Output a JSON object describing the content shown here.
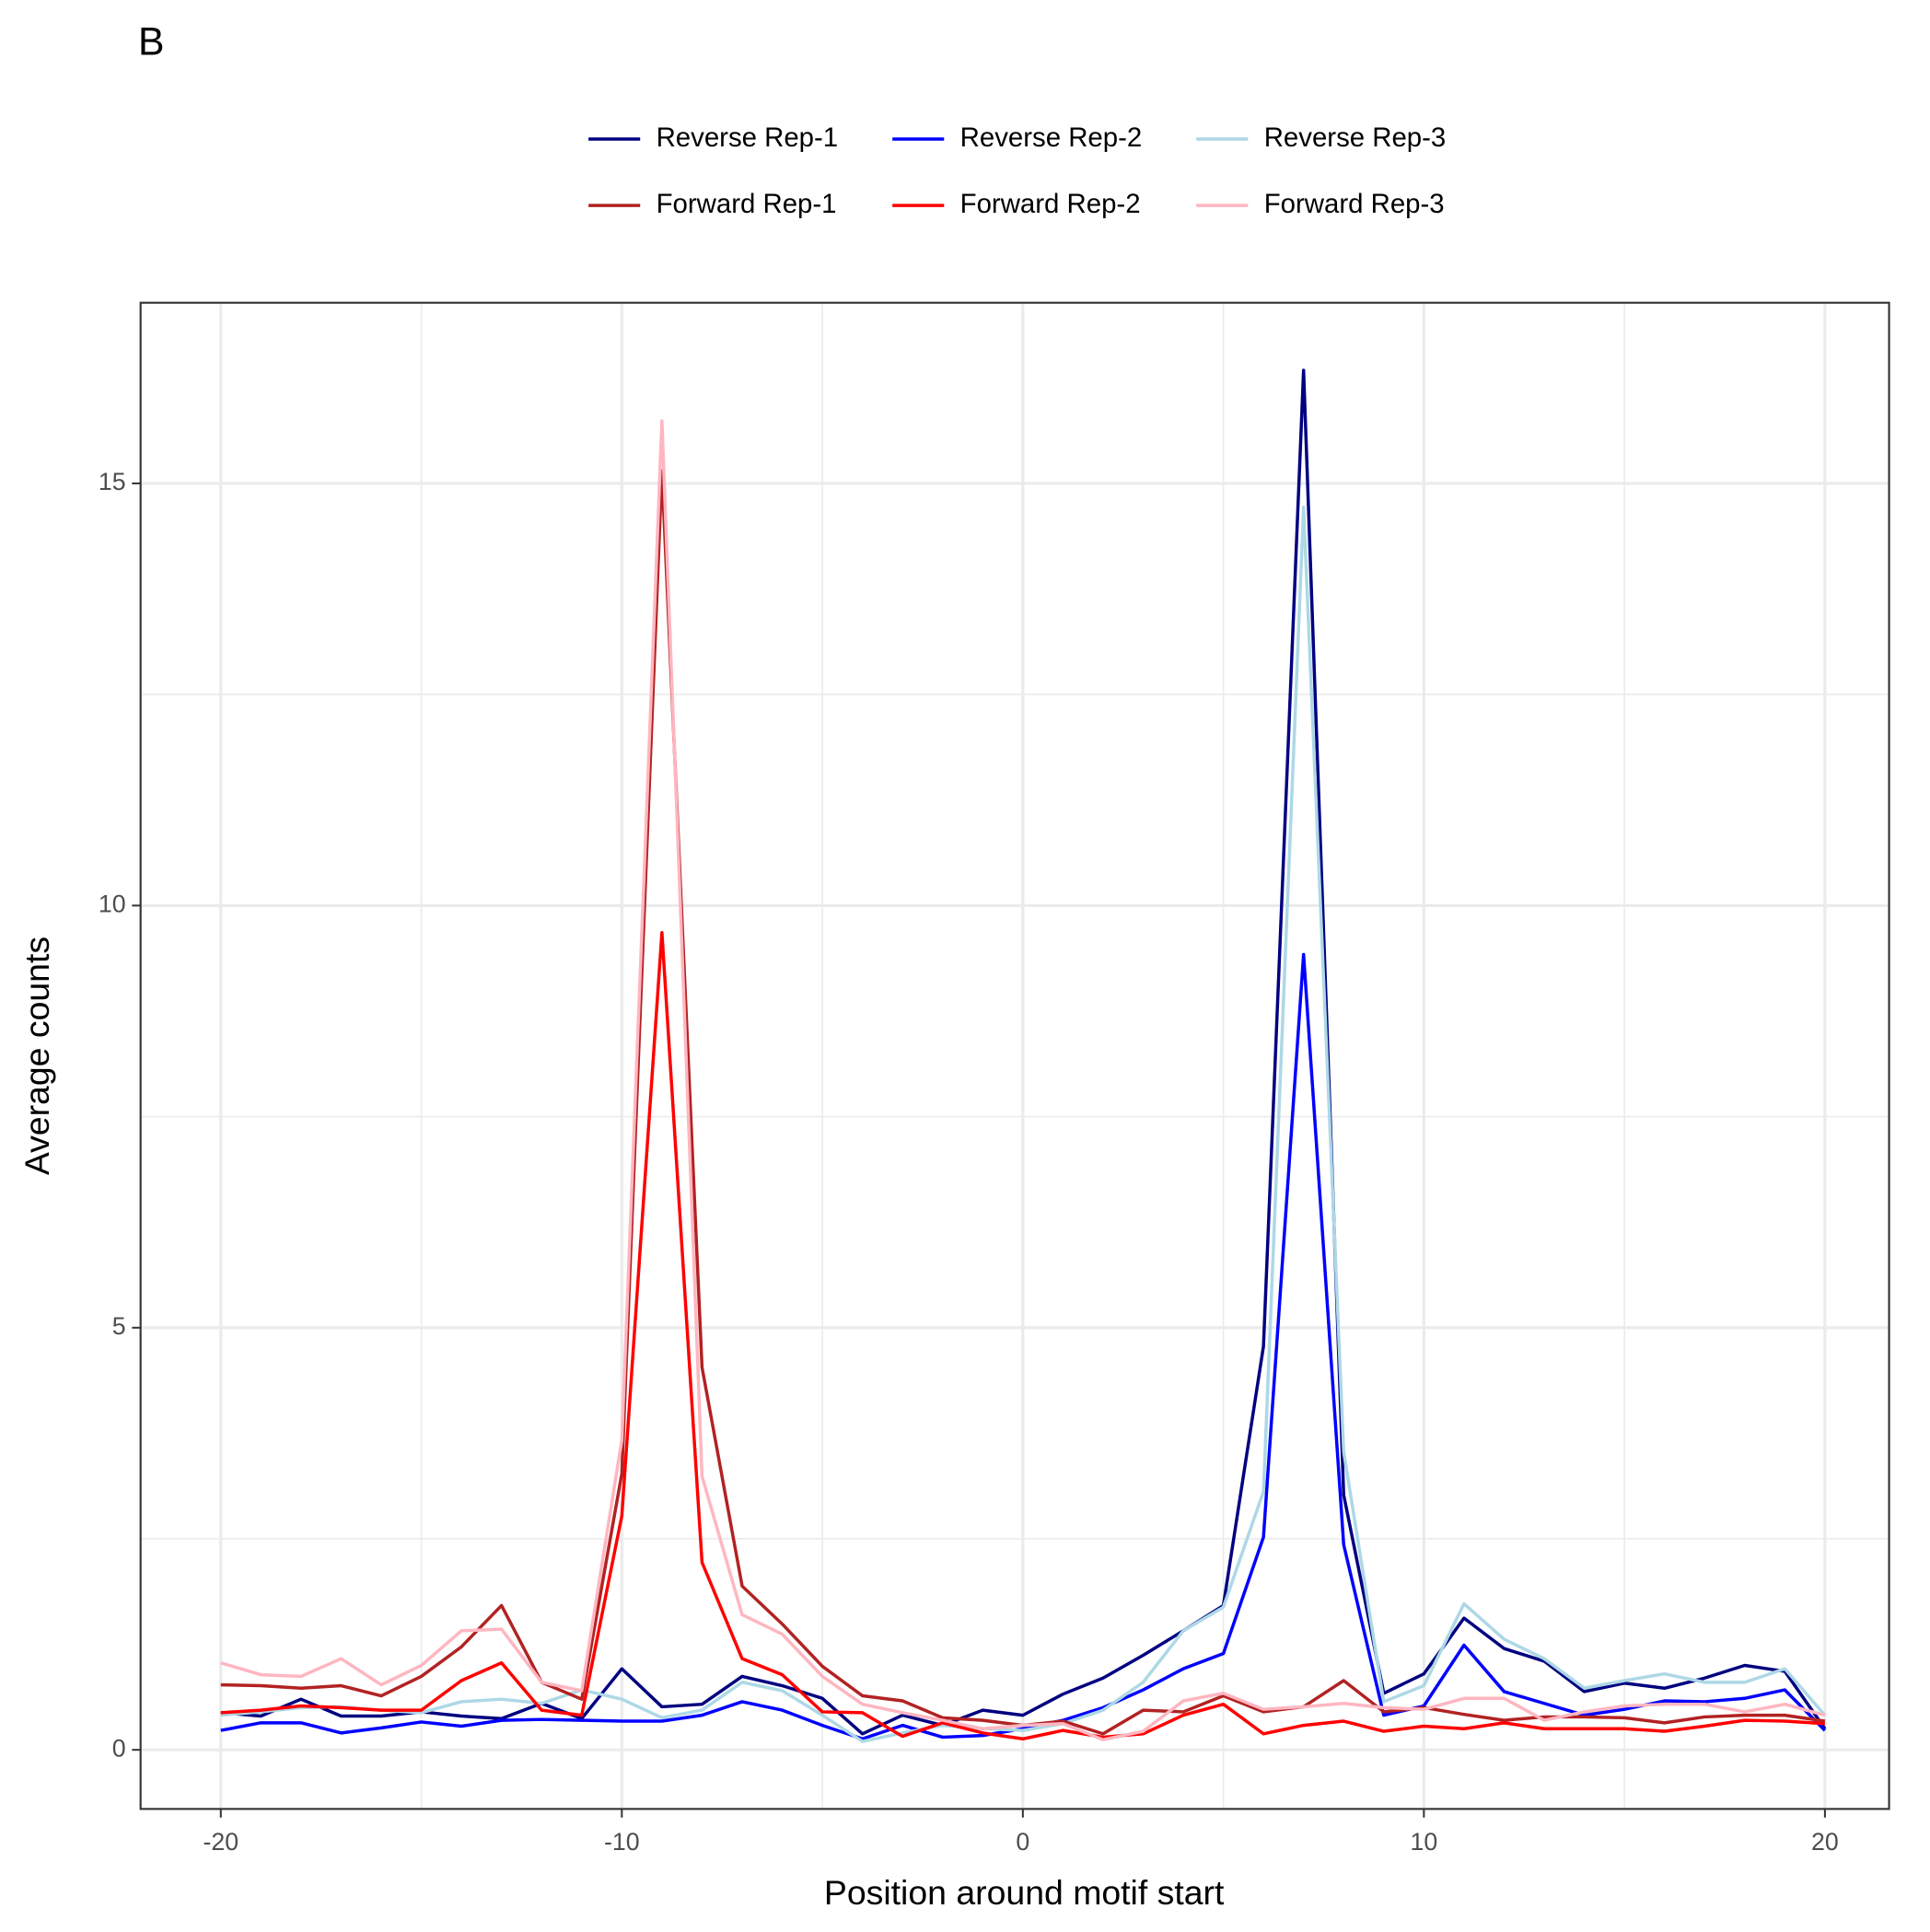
{
  "chart_data": {
    "type": "line",
    "panel_label": "B",
    "x_label": "Position around motif start",
    "y_label": "Average counts",
    "x": [
      -20,
      -19,
      -18,
      -17,
      -16,
      -15,
      -14,
      -13,
      -12,
      -11,
      -10,
      -9,
      -8,
      -7,
      -6,
      -5,
      -4,
      -3,
      -2,
      -1,
      0,
      1,
      2,
      3,
      4,
      5,
      6,
      7,
      8,
      9,
      10,
      11,
      12,
      13,
      14,
      15,
      16,
      17,
      18,
      19,
      20
    ],
    "series": [
      {
        "name": "Reverse Rep-1",
        "color": "#000080",
        "values": [
          0.44,
          0.4,
          0.6,
          0.4,
          0.4,
          0.45,
          0.4,
          0.37,
          0.55,
          0.37,
          0.96,
          0.51,
          0.54,
          0.87,
          0.76,
          0.61,
          0.19,
          0.41,
          0.29,
          0.47,
          0.41,
          0.66,
          0.85,
          1.12,
          1.41,
          1.71,
          4.78,
          16.34,
          3.02,
          0.67,
          0.9,
          1.56,
          1.2,
          1.05,
          0.69,
          0.79,
          0.73,
          0.85,
          1.0,
          0.93,
          0.25
        ]
      },
      {
        "name": "Reverse Rep-2",
        "color": "#0000ff",
        "values": [
          0.23,
          0.32,
          0.32,
          0.2,
          0.26,
          0.33,
          0.28,
          0.35,
          0.36,
          0.35,
          0.34,
          0.34,
          0.41,
          0.57,
          0.47,
          0.29,
          0.13,
          0.29,
          0.15,
          0.17,
          0.25,
          0.35,
          0.5,
          0.71,
          0.96,
          1.14,
          2.52,
          9.42,
          2.43,
          0.41,
          0.52,
          1.24,
          0.69,
          0.55,
          0.41,
          0.48,
          0.58,
          0.57,
          0.61,
          0.71,
          0.23
        ]
      },
      {
        "name": "Reverse Rep-3",
        "color": "#add8e6",
        "values": [
          0.41,
          0.45,
          0.5,
          0.51,
          0.47,
          0.44,
          0.57,
          0.6,
          0.55,
          0.71,
          0.6,
          0.38,
          0.47,
          0.8,
          0.7,
          0.41,
          0.1,
          0.2,
          0.29,
          0.25,
          0.23,
          0.31,
          0.47,
          0.8,
          1.41,
          1.69,
          3.06,
          14.72,
          3.53,
          0.57,
          0.76,
          1.73,
          1.31,
          1.08,
          0.73,
          0.82,
          0.9,
          0.8,
          0.8,
          0.96,
          0.41
        ]
      },
      {
        "name": "Forward Rep-1",
        "color": "#b22222",
        "values": [
          0.77,
          0.76,
          0.73,
          0.76,
          0.64,
          0.87,
          1.22,
          1.71,
          0.8,
          0.6,
          3.27,
          15.15,
          4.53,
          1.94,
          1.49,
          0.99,
          0.64,
          0.58,
          0.38,
          0.35,
          0.29,
          0.34,
          0.19,
          0.47,
          0.45,
          0.64,
          0.45,
          0.51,
          0.82,
          0.45,
          0.5,
          0.42,
          0.35,
          0.39,
          0.39,
          0.38,
          0.32,
          0.39,
          0.41,
          0.41,
          0.34
        ]
      },
      {
        "name": "Forward Rep-2",
        "color": "#ff0000",
        "values": [
          0.44,
          0.47,
          0.52,
          0.5,
          0.47,
          0.47,
          0.82,
          1.03,
          0.47,
          0.41,
          2.77,
          9.68,
          2.22,
          1.08,
          0.89,
          0.45,
          0.44,
          0.16,
          0.32,
          0.2,
          0.13,
          0.23,
          0.15,
          0.19,
          0.41,
          0.54,
          0.19,
          0.29,
          0.34,
          0.22,
          0.28,
          0.25,
          0.32,
          0.25,
          0.25,
          0.25,
          0.22,
          0.28,
          0.35,
          0.34,
          0.31
        ]
      },
      {
        "name": "Forward Rep-3",
        "color": "#ffb6c1",
        "values": [
          1.03,
          0.89,
          0.87,
          1.08,
          0.77,
          1.0,
          1.41,
          1.43,
          0.8,
          0.7,
          3.67,
          15.74,
          3.24,
          1.6,
          1.37,
          0.87,
          0.54,
          0.44,
          0.35,
          0.25,
          0.29,
          0.31,
          0.12,
          0.22,
          0.58,
          0.67,
          0.48,
          0.51,
          0.55,
          0.5,
          0.48,
          0.61,
          0.61,
          0.35,
          0.45,
          0.52,
          0.54,
          0.54,
          0.45,
          0.54,
          0.41
        ]
      }
    ],
    "xlim": [
      -22,
      21.6
    ],
    "ylim": [
      -0.7,
      17.14
    ],
    "xticks": [
      -20,
      -10,
      0,
      10,
      20
    ],
    "yticks": [
      0,
      5,
      10,
      15
    ],
    "x_minor_gridlines": [
      -15,
      -5,
      5,
      15
    ],
    "y_minor_gridlines": [
      2.5,
      7.5,
      12.5
    ],
    "grid": true,
    "legend_position": "top"
  }
}
